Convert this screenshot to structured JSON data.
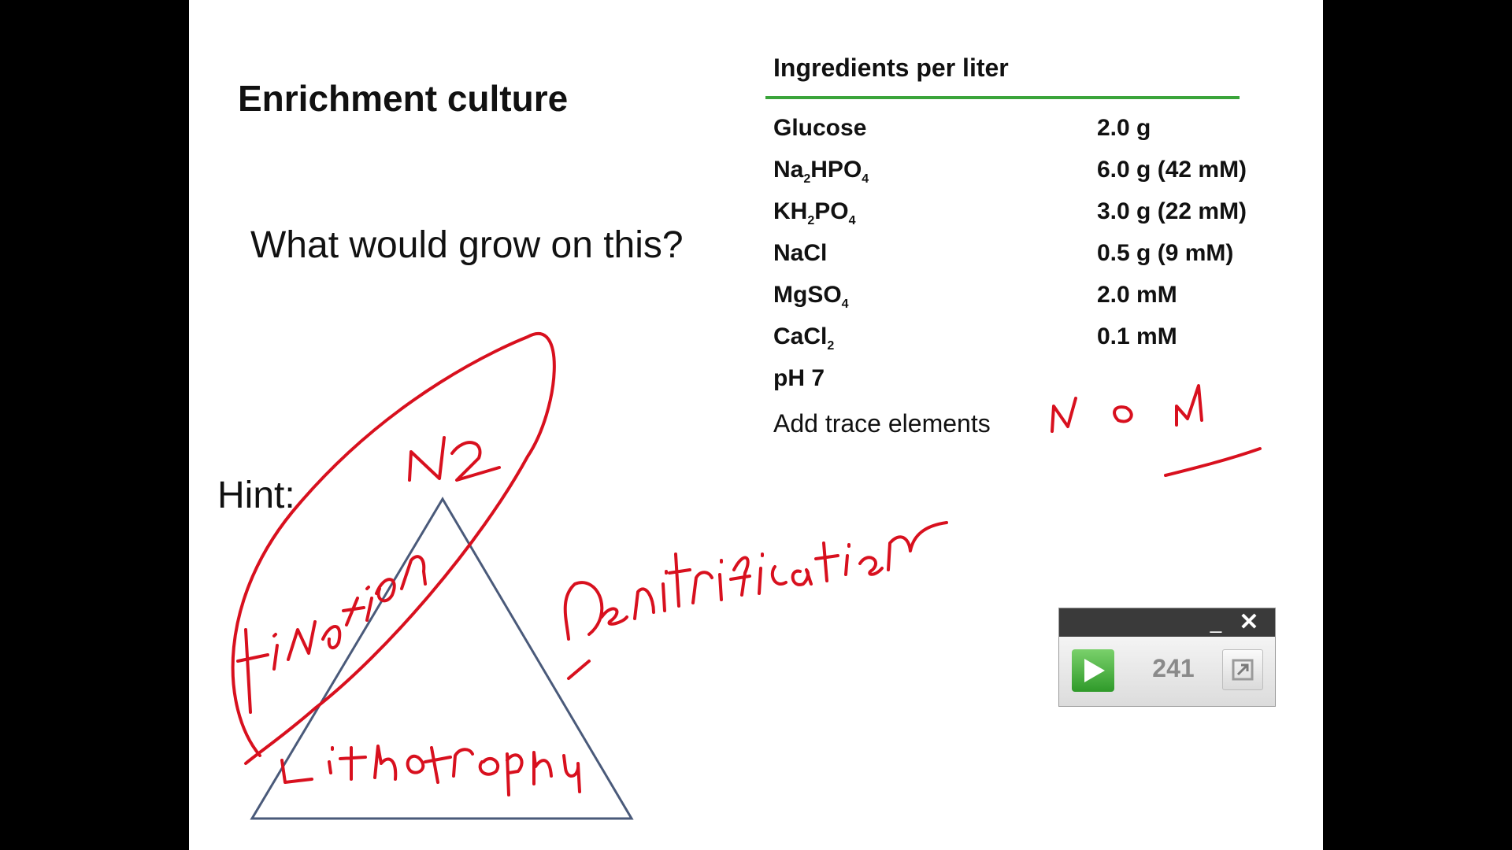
{
  "slide": {
    "title": "Enrichment culture",
    "question": "What would grow on this?",
    "hint": "Hint:"
  },
  "table": {
    "header": "Ingredients per liter",
    "rows": [
      {
        "ingredient_base": "Glucose",
        "amount": "2.0 g"
      },
      {
        "ingredient_parts": [
          "Na",
          "2",
          "HPO",
          "4"
        ],
        "amount": "6.0 g (42 mM)"
      },
      {
        "ingredient_parts": [
          "KH",
          "2",
          "PO",
          "4"
        ],
        "amount": "3.0 g (22 mM)"
      },
      {
        "ingredient_base": "NaCl",
        "amount": "0.5 g (9 mM)"
      },
      {
        "ingredient_parts": [
          "MgSO",
          "4"
        ],
        "amount": "2.0 mM"
      },
      {
        "ingredient_parts": [
          "CaCl",
          "2"
        ],
        "amount": "0.1 mM"
      },
      {
        "ingredient_base": "pH 7",
        "amount": ""
      }
    ],
    "footer": "Add trace elements",
    "accent_color": "#3aa43a"
  },
  "annotations": {
    "ink_color": "#d8101e",
    "triangle_color": "#4a5a7a",
    "words": [
      "Fixation N2",
      "Denitrification",
      "Lithotrophy",
      "No N"
    ]
  },
  "timer": {
    "count": "241",
    "minimize_label": "_",
    "close_label": "✕",
    "icons": [
      "play-icon",
      "expand-icon"
    ]
  }
}
